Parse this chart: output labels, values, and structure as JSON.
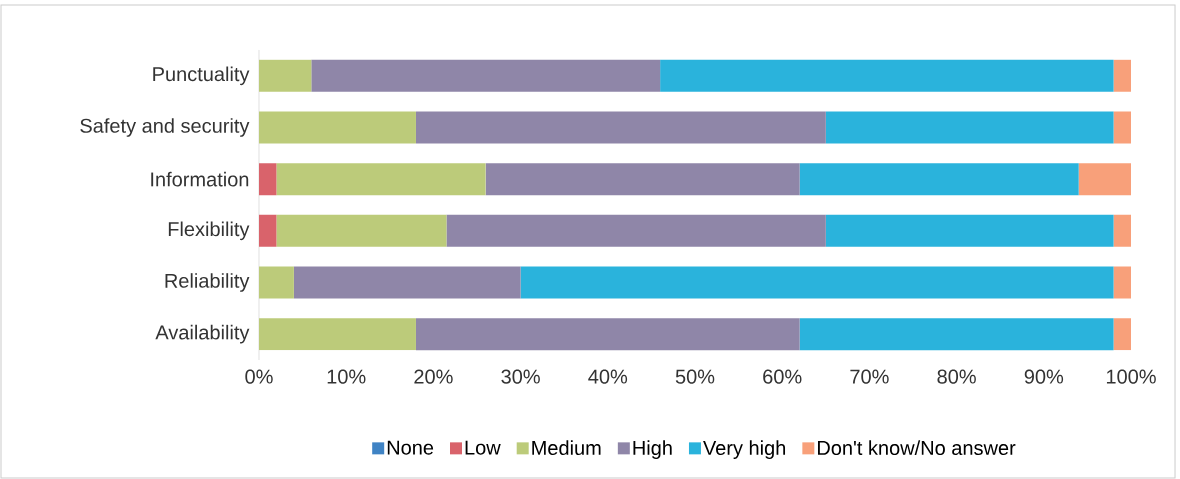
{
  "chart_data": {
    "type": "bar",
    "orientation": "horizontal",
    "stacked": true,
    "categories": [
      "Punctuality",
      "Safety and security",
      "Information",
      "Flexibility",
      "Reliability",
      "Availability"
    ],
    "series": [
      {
        "name": "None",
        "color": "#3f83c4",
        "values": [
          0,
          0,
          0,
          0,
          0,
          0
        ]
      },
      {
        "name": "Low",
        "color": "#d9636b",
        "values": [
          0,
          0,
          2,
          2,
          0,
          0
        ]
      },
      {
        "name": "Medium",
        "color": "#bccb7a",
        "values": [
          6,
          18,
          24,
          19.5,
          4,
          18
        ]
      },
      {
        "name": "High",
        "color": "#8f86a8",
        "values": [
          40,
          47,
          36,
          43.5,
          26,
          44
        ]
      },
      {
        "name": "Very high",
        "color": "#2ab3dc",
        "values": [
          52,
          33,
          32,
          33,
          68,
          36
        ]
      },
      {
        "name": "Don't know/No answer",
        "color": "#f8a07a",
        "values": [
          2,
          2,
          6,
          2,
          2,
          2
        ]
      }
    ],
    "xlim": [
      0,
      100
    ],
    "xticks": [
      {
        "value": 0,
        "label": "0%"
      },
      {
        "value": 10,
        "label": "10%"
      },
      {
        "value": 20,
        "label": "20%"
      },
      {
        "value": 30,
        "label": "30%"
      },
      {
        "value": 40,
        "label": "40%"
      },
      {
        "value": 50,
        "label": "50%"
      },
      {
        "value": 60,
        "label": "60%"
      },
      {
        "value": 70,
        "label": "70%"
      },
      {
        "value": 80,
        "label": "80%"
      },
      {
        "value": 90,
        "label": "90%"
      },
      {
        "value": 100,
        "label": "100%"
      }
    ],
    "grid": false,
    "legend": "bottom"
  }
}
